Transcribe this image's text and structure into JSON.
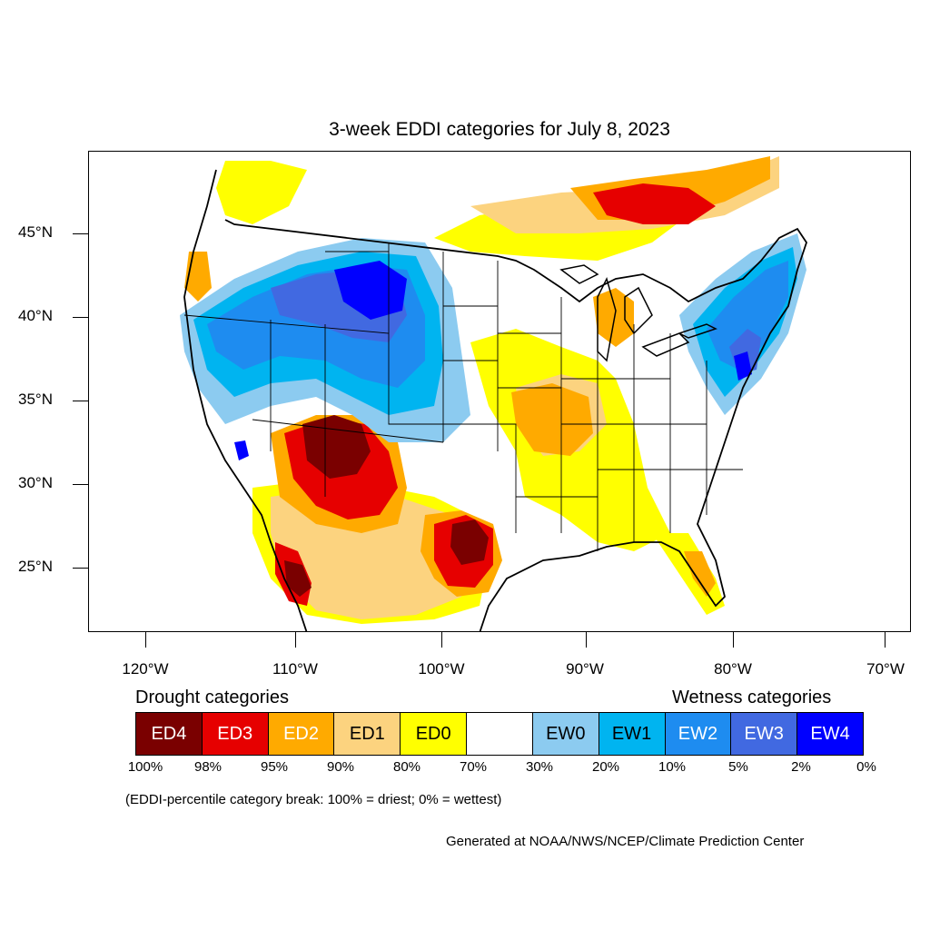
{
  "title": "3-week EDDI categories for July 8, 2023",
  "axes": {
    "lat_labels": [
      "45°N",
      "40°N",
      "35°N",
      "30°N",
      "25°N"
    ],
    "lon_labels": [
      "120°W",
      "110°W",
      "100°W",
      "90°W",
      "80°W",
      "70°W"
    ]
  },
  "legend": {
    "drought_heading": "Drought categories",
    "wetness_heading": "Wetness categories",
    "categories": [
      {
        "label": "ED4",
        "color": "#7a0000",
        "text_color": "#ffffff"
      },
      {
        "label": "ED3",
        "color": "#e60000",
        "text_color": "#ffffff"
      },
      {
        "label": "ED2",
        "color": "#ffaa00",
        "text_color": "#ffffff"
      },
      {
        "label": "ED1",
        "color": "#fcd37f",
        "text_color": "#000000"
      },
      {
        "label": "ED0",
        "color": "#ffff00",
        "text_color": "#000000"
      },
      {
        "label": "",
        "color": "#ffffff",
        "text_color": "#000000"
      },
      {
        "label": "EW0",
        "color": "#8ccbf0",
        "text_color": "#000000"
      },
      {
        "label": "EW1",
        "color": "#00b4f0",
        "text_color": "#000000"
      },
      {
        "label": "EW2",
        "color": "#1e8cf0",
        "text_color": "#ffffff"
      },
      {
        "label": "EW3",
        "color": "#4169e1",
        "text_color": "#ffffff"
      },
      {
        "label": "EW4",
        "color": "#0000ff",
        "text_color": "#ffffff"
      }
    ],
    "percent_breaks": [
      "100%",
      "98%",
      "95%",
      "90%",
      "80%",
      "70%",
      "30%",
      "20%",
      "10%",
      "5%",
      "2%",
      "0%"
    ]
  },
  "note": "(EDDI-percentile category break: 100% = driest; 0% = wettest)",
  "credit": "Generated at NOAA/NWS/NCEP/Climate Prediction Center"
}
